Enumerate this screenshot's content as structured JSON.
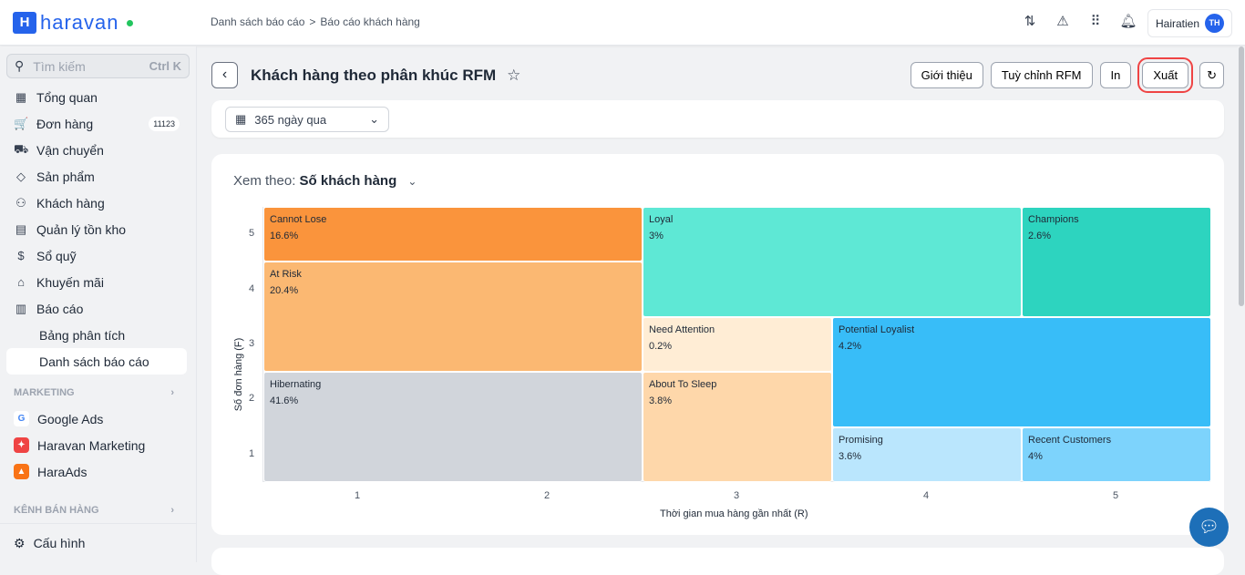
{
  "app": {
    "logo": "haravan",
    "logo_mark": "H"
  },
  "breadcrumb": [
    "Danh sách báo cáo",
    "Báo cáo khách hàng"
  ],
  "breadcrumb_sep": ">",
  "user": {
    "name": "Hairatien",
    "initials": "TH"
  },
  "top_icons": [
    "exchange-icon",
    "feedback-icon",
    "apps-grid-icon",
    "bell-icon"
  ],
  "sidebar": {
    "search_placeholder": "Tìm kiếm",
    "search_shortcut": "Ctrl K",
    "items": [
      {
        "label": "Tổng quan",
        "icon": "dashboard-icon",
        "glyph": "▦"
      },
      {
        "label": "Đơn hàng",
        "icon": "cart-icon",
        "glyph": "🛒",
        "badge": "11123"
      },
      {
        "label": "Vận chuyển",
        "icon": "truck-icon",
        "glyph": "⛟"
      },
      {
        "label": "Sản phẩm",
        "icon": "tag-icon",
        "glyph": "◇"
      },
      {
        "label": "Khách hàng",
        "icon": "users-icon",
        "glyph": "⚇"
      },
      {
        "label": "Quản lý tồn kho",
        "icon": "inventory-icon",
        "glyph": "▤"
      },
      {
        "label": "Sổ quỹ",
        "icon": "dollar-icon",
        "glyph": "$"
      },
      {
        "label": "Khuyến mãi",
        "icon": "gift-icon",
        "glyph": "⌂"
      },
      {
        "label": "Báo cáo",
        "icon": "chart-icon",
        "glyph": "▥"
      }
    ],
    "sub_items": [
      "Bảng phân tích",
      "Danh sách báo cáo"
    ],
    "marketing_title": "MARKETING",
    "marketing": [
      {
        "label": "Google Ads",
        "color": "#ffffff",
        "glyph": "G"
      },
      {
        "label": "Haravan Marketing",
        "color": "#ef4444",
        "glyph": "✦"
      },
      {
        "label": "HaraAds",
        "color": "#f97316",
        "glyph": "▲"
      }
    ],
    "channels_title": "KÊNH BÁN HÀNG",
    "settings": "Cấu hình"
  },
  "page": {
    "title": "Khách hàng theo phân khúc RFM",
    "buttons": {
      "intro": "Giới thiệu",
      "customize": "Tuỳ chỉnh RFM",
      "print": "In",
      "export": "Xuất"
    },
    "date_range": "365 ngày qua",
    "view_by_label": "Xem theo:",
    "view_by_value": "Số khách hàng"
  },
  "chart_data": {
    "type": "heatmap",
    "xlabel": "Thời gian mua hàng gần nhất (R)",
    "ylabel": "Số đơn hàng (F)",
    "x_ticks": [
      "1",
      "2",
      "3",
      "4",
      "5"
    ],
    "y_ticks": [
      "1",
      "2",
      "3",
      "4",
      "5"
    ],
    "segments": [
      {
        "name": "Cannot Lose",
        "value": "16.6%",
        "r": [
          1,
          2
        ],
        "f": [
          5,
          5
        ],
        "color": "#fa943c"
      },
      {
        "name": "At Risk",
        "value": "20.4%",
        "r": [
          1,
          2
        ],
        "f": [
          3,
          4
        ],
        "color": "#fbb872"
      },
      {
        "name": "Hibernating",
        "value": "41.6%",
        "r": [
          1,
          2
        ],
        "f": [
          1,
          2
        ],
        "color": "#d1d5db"
      },
      {
        "name": "Loyal",
        "value": "3%",
        "r": [
          3,
          4
        ],
        "f": [
          4,
          5
        ],
        "color": "#5ee8d5"
      },
      {
        "name": "Champions",
        "value": "2.6%",
        "r": [
          5,
          5
        ],
        "f": [
          4,
          5
        ],
        "color": "#2dd4bf"
      },
      {
        "name": "Need Attention",
        "value": "0.2%",
        "r": [
          3,
          3
        ],
        "f": [
          3,
          3
        ],
        "color": "#ffedd5"
      },
      {
        "name": "Potential Loyalist",
        "value": "4.2%",
        "r": [
          4,
          5
        ],
        "f": [
          2,
          3
        ],
        "color": "#38bdf8"
      },
      {
        "name": "About To Sleep",
        "value": "3.8%",
        "r": [
          3,
          3
        ],
        "f": [
          1,
          2
        ],
        "color": "#fed7aa"
      },
      {
        "name": "Promising",
        "value": "3.6%",
        "r": [
          4,
          4
        ],
        "f": [
          1,
          1
        ],
        "color": "#bae6fd"
      },
      {
        "name": "Recent Customers",
        "value": "4%",
        "r": [
          5,
          5
        ],
        "f": [
          1,
          1
        ],
        "color": "#7dd3fc"
      }
    ]
  }
}
